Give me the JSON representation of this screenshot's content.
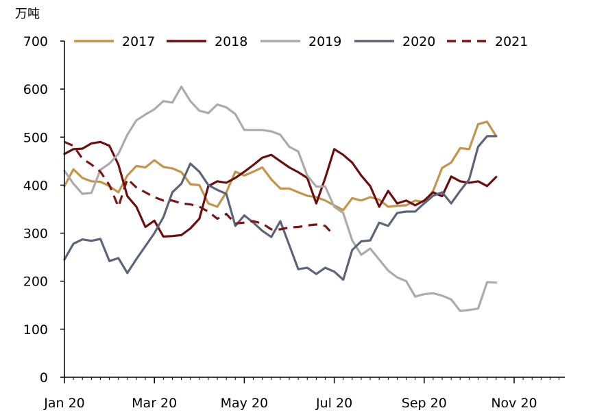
{
  "chart_data": {
    "type": "line",
    "unit": "万吨",
    "ylim": [
      0,
      700
    ],
    "yticks": [
      0,
      100,
      200,
      300,
      400,
      500,
      600,
      700
    ],
    "xticks": [
      {
        "label": "Jan 20",
        "x": 0
      },
      {
        "label": "Mar 20",
        "x": 2
      },
      {
        "label": "May 20",
        "x": 4
      },
      {
        "label": "Jul 20",
        "x": 6
      },
      {
        "label": "Sep 20",
        "x": 8
      },
      {
        "label": "Nov 20",
        "x": 10
      }
    ],
    "xlim": [
      0,
      11.1
    ],
    "grid": false,
    "legend_position": "top",
    "series": [
      {
        "name": "2017",
        "color": "#C4944D",
        "dash": false,
        "points": [
          [
            0,
            398
          ],
          [
            0.2,
            433
          ],
          [
            0.4,
            415
          ],
          [
            0.6,
            408
          ],
          [
            0.8,
            407
          ],
          [
            1.0,
            398
          ],
          [
            1.2,
            385
          ],
          [
            1.4,
            420
          ],
          [
            1.6,
            440
          ],
          [
            1.8,
            437
          ],
          [
            2.0,
            452
          ],
          [
            2.2,
            438
          ],
          [
            2.4,
            435
          ],
          [
            2.6,
            427
          ],
          [
            2.8,
            402
          ],
          [
            3.0,
            400
          ],
          [
            3.2,
            362
          ],
          [
            3.4,
            355
          ],
          [
            3.6,
            385
          ],
          [
            3.8,
            428
          ],
          [
            4.0,
            420
          ],
          [
            4.2,
            428
          ],
          [
            4.4,
            437
          ],
          [
            4.6,
            412
          ],
          [
            4.8,
            393
          ],
          [
            5.0,
            393
          ],
          [
            5.2,
            385
          ],
          [
            5.4,
            378
          ],
          [
            5.6,
            375
          ],
          [
            5.8,
            368
          ],
          [
            6.0,
            358
          ],
          [
            6.2,
            348
          ],
          [
            6.4,
            373
          ],
          [
            6.6,
            368
          ],
          [
            6.8,
            375
          ],
          [
            7.0,
            370
          ],
          [
            7.2,
            355
          ],
          [
            7.4,
            357
          ],
          [
            7.6,
            358
          ],
          [
            7.8,
            368
          ],
          [
            8.0,
            365
          ],
          [
            8.2,
            388
          ],
          [
            8.4,
            436
          ],
          [
            8.6,
            447
          ],
          [
            8.8,
            477
          ],
          [
            9.0,
            475
          ],
          [
            9.2,
            527
          ],
          [
            9.4,
            532
          ],
          [
            9.6,
            502
          ]
        ]
      },
      {
        "name": "2018",
        "color": "#6B0E0E",
        "dash": false,
        "points": [
          [
            0,
            465
          ],
          [
            0.2,
            475
          ],
          [
            0.4,
            476
          ],
          [
            0.6,
            487
          ],
          [
            0.8,
            490
          ],
          [
            1.0,
            482
          ],
          [
            1.2,
            443
          ],
          [
            1.4,
            377
          ],
          [
            1.6,
            355
          ],
          [
            1.8,
            313
          ],
          [
            2.0,
            326
          ],
          [
            2.2,
            293
          ],
          [
            2.4,
            294
          ],
          [
            2.6,
            296
          ],
          [
            2.8,
            310
          ],
          [
            3.0,
            330
          ],
          [
            3.2,
            398
          ],
          [
            3.4,
            408
          ],
          [
            3.6,
            405
          ],
          [
            3.8,
            415
          ],
          [
            4.0,
            428
          ],
          [
            4.2,
            442
          ],
          [
            4.4,
            457
          ],
          [
            4.6,
            463
          ],
          [
            4.8,
            450
          ],
          [
            5.0,
            437
          ],
          [
            5.2,
            427
          ],
          [
            5.4,
            415
          ],
          [
            5.6,
            362
          ],
          [
            5.8,
            415
          ],
          [
            6.0,
            475
          ],
          [
            6.2,
            463
          ],
          [
            6.4,
            447
          ],
          [
            6.6,
            420
          ],
          [
            6.8,
            398
          ],
          [
            7.0,
            355
          ],
          [
            7.2,
            388
          ],
          [
            7.4,
            362
          ],
          [
            7.6,
            368
          ],
          [
            7.8,
            358
          ],
          [
            8.0,
            368
          ],
          [
            8.2,
            385
          ],
          [
            8.4,
            377
          ],
          [
            8.6,
            418
          ],
          [
            8.8,
            408
          ],
          [
            9.0,
            405
          ],
          [
            9.2,
            408
          ],
          [
            9.4,
            398
          ],
          [
            9.6,
            417
          ]
        ]
      },
      {
        "name": "2019",
        "color": "#ABABAB",
        "dash": false,
        "points": [
          [
            0,
            430
          ],
          [
            0.2,
            403
          ],
          [
            0.4,
            382
          ],
          [
            0.6,
            384
          ],
          [
            0.8,
            432
          ],
          [
            1.0,
            445
          ],
          [
            1.2,
            465
          ],
          [
            1.4,
            505
          ],
          [
            1.6,
            535
          ],
          [
            1.8,
            547
          ],
          [
            2.0,
            558
          ],
          [
            2.2,
            575
          ],
          [
            2.4,
            572
          ],
          [
            2.6,
            605
          ],
          [
            2.8,
            575
          ],
          [
            3.0,
            555
          ],
          [
            3.2,
            550
          ],
          [
            3.4,
            568
          ],
          [
            3.6,
            562
          ],
          [
            3.8,
            548
          ],
          [
            4.0,
            515
          ],
          [
            4.2,
            515
          ],
          [
            4.4,
            515
          ],
          [
            4.6,
            512
          ],
          [
            4.8,
            505
          ],
          [
            5.0,
            480
          ],
          [
            5.2,
            470
          ],
          [
            5.4,
            420
          ],
          [
            5.6,
            397
          ],
          [
            5.8,
            397
          ],
          [
            6.0,
            355
          ],
          [
            6.2,
            342
          ],
          [
            6.4,
            285
          ],
          [
            6.6,
            255
          ],
          [
            6.8,
            268
          ],
          [
            7.0,
            245
          ],
          [
            7.2,
            222
          ],
          [
            7.4,
            208
          ],
          [
            7.6,
            200
          ],
          [
            7.8,
            168
          ],
          [
            8.0,
            173
          ],
          [
            8.2,
            175
          ],
          [
            8.4,
            170
          ],
          [
            8.6,
            162
          ],
          [
            8.8,
            138
          ],
          [
            9.0,
            140
          ],
          [
            9.2,
            143
          ],
          [
            9.4,
            198
          ],
          [
            9.6,
            197
          ]
        ]
      },
      {
        "name": "2020",
        "color": "#5B6478",
        "dash": false,
        "points": [
          [
            0,
            245
          ],
          [
            0.2,
            278
          ],
          [
            0.4,
            287
          ],
          [
            0.6,
            284
          ],
          [
            0.8,
            288
          ],
          [
            1.0,
            242
          ],
          [
            1.2,
            248
          ],
          [
            1.4,
            217
          ],
          [
            1.6,
            246
          ],
          [
            1.8,
            273
          ],
          [
            2.0,
            300
          ],
          [
            2.2,
            333
          ],
          [
            2.4,
            385
          ],
          [
            2.6,
            403
          ],
          [
            2.8,
            445
          ],
          [
            3.0,
            428
          ],
          [
            3.2,
            400
          ],
          [
            3.4,
            390
          ],
          [
            3.6,
            382
          ],
          [
            3.8,
            315
          ],
          [
            4.0,
            337
          ],
          [
            4.2,
            322
          ],
          [
            4.4,
            305
          ],
          [
            4.6,
            292
          ],
          [
            4.8,
            325
          ],
          [
            5.0,
            275
          ],
          [
            5.2,
            225
          ],
          [
            5.4,
            228
          ],
          [
            5.6,
            215
          ],
          [
            5.8,
            228
          ],
          [
            6.0,
            220
          ],
          [
            6.2,
            203
          ],
          [
            6.4,
            265
          ],
          [
            6.6,
            283
          ],
          [
            6.8,
            285
          ],
          [
            7.0,
            322
          ],
          [
            7.2,
            315
          ],
          [
            7.4,
            342
          ],
          [
            7.6,
            345
          ],
          [
            7.8,
            345
          ],
          [
            8.0,
            362
          ],
          [
            8.2,
            378
          ],
          [
            8.4,
            385
          ],
          [
            8.6,
            362
          ],
          [
            8.8,
            388
          ],
          [
            9.0,
            412
          ],
          [
            9.2,
            480
          ],
          [
            9.4,
            502
          ],
          [
            9.6,
            502
          ]
        ]
      },
      {
        "name": "2021",
        "color": "#7A1616",
        "dash": true,
        "points": [
          [
            0,
            490
          ],
          [
            0.2,
            482
          ],
          [
            0.4,
            455
          ],
          [
            0.6,
            443
          ],
          [
            0.8,
            428
          ],
          [
            1.0,
            400
          ],
          [
            1.2,
            355
          ],
          [
            1.4,
            413
          ],
          [
            1.6,
            395
          ],
          [
            1.8,
            385
          ],
          [
            2.0,
            375
          ],
          [
            2.2,
            368
          ],
          [
            2.4,
            368
          ],
          [
            2.6,
            362
          ],
          [
            2.8,
            360
          ],
          [
            3.0,
            355
          ],
          [
            3.2,
            345
          ],
          [
            3.4,
            330
          ],
          [
            3.6,
            340
          ],
          [
            3.8,
            320
          ],
          [
            4.0,
            322
          ],
          [
            4.2,
            325
          ],
          [
            4.4,
            320
          ],
          [
            4.6,
            308
          ],
          [
            4.8,
            308
          ],
          [
            5.0,
            312
          ],
          [
            5.2,
            313
          ],
          [
            5.4,
            316
          ],
          [
            5.6,
            318
          ],
          [
            5.8,
            315
          ],
          [
            6.0,
            295
          ]
        ]
      }
    ]
  }
}
